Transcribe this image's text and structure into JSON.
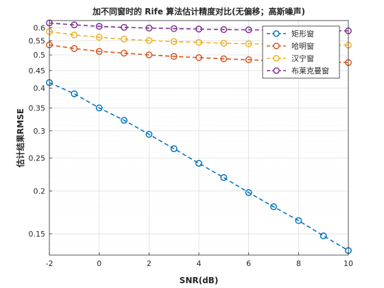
{
  "chart_data": {
    "type": "line",
    "title": "加不同窗时的 Rife 算法估计精度对比(无偏移；高斯噪声)",
    "xlabel": "SNR(dB)",
    "ylabel": "估计结果RMSE",
    "xlim": [
      -2,
      10
    ],
    "ylim": [
      0.13,
      0.63
    ],
    "yscale": "log",
    "grid": true,
    "legend_position": "top-right",
    "x": [
      -2,
      -1,
      0,
      1,
      2,
      3,
      4,
      5,
      6,
      7,
      8,
      9,
      10
    ],
    "x_ticks": [
      "-2",
      "0",
      "2",
      "4",
      "6",
      "8",
      "10"
    ],
    "x_tick_values": [
      -2,
      0,
      2,
      4,
      6,
      8,
      10
    ],
    "y_ticks": [
      "0.15",
      "0.2",
      "0.25",
      "0.3",
      "0.35",
      "0.4",
      "0.45",
      "0.5",
      "0.55",
      "0.6"
    ],
    "y_tick_values": [
      0.15,
      0.2,
      0.25,
      0.3,
      0.35,
      0.4,
      0.45,
      0.5,
      0.55,
      0.6
    ],
    "series": [
      {
        "name": "矩形窗",
        "color": "#0072BD",
        "values": [
          0.415,
          0.385,
          0.35,
          0.322,
          0.293,
          0.266,
          0.241,
          0.219,
          0.198,
          0.18,
          0.164,
          0.148,
          0.134
        ]
      },
      {
        "name": "哈明窗",
        "color": "#D95319",
        "values": [
          0.535,
          0.522,
          0.512,
          0.506,
          0.5,
          0.495,
          0.491,
          0.487,
          0.484,
          0.481,
          0.479,
          0.477,
          0.475
        ]
      },
      {
        "name": "汉宁窗",
        "color": "#EDB120",
        "values": [
          0.585,
          0.572,
          0.563,
          0.556,
          0.551,
          0.547,
          0.544,
          0.541,
          0.539,
          0.537,
          0.536,
          0.535,
          0.534
        ]
      },
      {
        "name": "布莱克曼窗",
        "color": "#7E2F8E",
        "values": [
          0.62,
          0.612,
          0.606,
          0.602,
          0.599,
          0.597,
          0.595,
          0.593,
          0.592,
          0.591,
          0.59,
          0.589,
          0.588
        ]
      }
    ]
  }
}
